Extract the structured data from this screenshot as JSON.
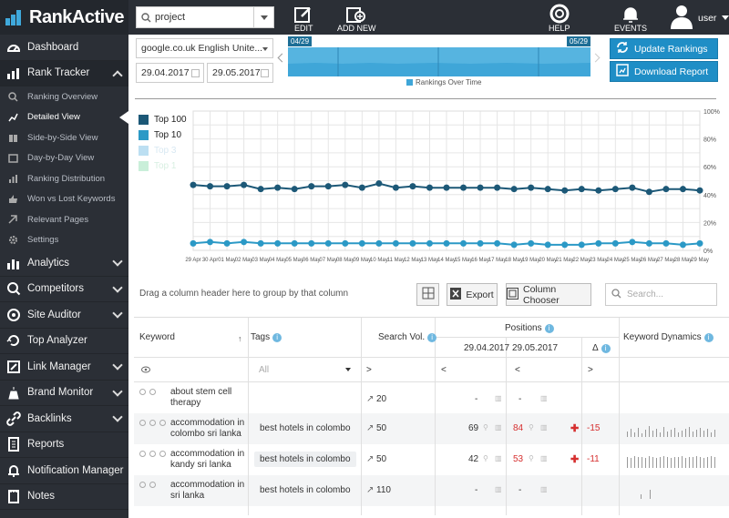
{
  "brand": {
    "name": "RankActive"
  },
  "topbar": {
    "project_value": "project",
    "edit_label": "EDIT",
    "add_new_label": "ADD NEW",
    "help_label": "HELP",
    "events_label": "EVENTS",
    "user_label": "user"
  },
  "sidebar": {
    "items": [
      {
        "label": "Dashboard",
        "icon": "dashboard-icon"
      },
      {
        "label": "Rank Tracker",
        "icon": "rank-tracker-icon"
      },
      {
        "label": "Analytics",
        "icon": "analytics-icon"
      },
      {
        "label": "Competitors",
        "icon": "competitors-icon"
      },
      {
        "label": "Site Auditor",
        "icon": "site-auditor-icon"
      },
      {
        "label": "Top Analyzer",
        "icon": "top-analyzer-icon"
      },
      {
        "label": "Link Manager",
        "icon": "link-manager-icon"
      },
      {
        "label": "Brand Monitor",
        "icon": "brand-monitor-icon"
      },
      {
        "label": "Backlinks",
        "icon": "backlinks-icon"
      },
      {
        "label": "Reports",
        "icon": "reports-icon"
      },
      {
        "label": "Notification Manager",
        "icon": "notification-icon"
      },
      {
        "label": "Notes",
        "icon": "notes-icon"
      }
    ],
    "subitems": [
      {
        "label": "Ranking Overview"
      },
      {
        "label": "Detailed View"
      },
      {
        "label": "Side-by-Side View"
      },
      {
        "label": "Day-by-Day View"
      },
      {
        "label": "Ranking Distribution"
      },
      {
        "label": "Won vs Lost Keywords"
      },
      {
        "label": "Relevant Pages"
      },
      {
        "label": "Settings"
      }
    ]
  },
  "filters": {
    "engine": "google.co.uk English Unite...",
    "date_from": "29.04.2017",
    "date_to": "29.05.2017"
  },
  "timeline": {
    "start_tag": "04/29",
    "end_tag": "05/29",
    "legend": "Rankings Over Time"
  },
  "actions": {
    "update": "Update Rankings",
    "download": "Download Report"
  },
  "chart_data": {
    "type": "line",
    "legend": [
      "Top 100",
      "Top 10",
      "Top 3",
      "Top 1"
    ],
    "colors": [
      "#1c5877",
      "#2b99c6",
      "#bcdff2",
      "#c9efd9"
    ],
    "x": [
      "29 Apr",
      "30 Apr",
      "01 May",
      "02 May",
      "03 May",
      "04 May",
      "05 May",
      "06 May",
      "07 May",
      "08 May",
      "09 May",
      "10 May",
      "11 May",
      "12 May",
      "13 May",
      "14 May",
      "15 May",
      "16 May",
      "17 May",
      "18 May",
      "19 May",
      "20 May",
      "21 May",
      "22 May",
      "23 May",
      "24 May",
      "25 May",
      "26 May",
      "27 May",
      "28 May",
      "29 May"
    ],
    "x_ticks": [
      "29 Apr",
      "30 Apr",
      "01 May",
      "02 May",
      "03 May",
      "04 May",
      "05 May",
      "06 May",
      "07 May",
      "08 May",
      "09 May",
      "10 May",
      "11 May",
      "12 May",
      "13 May",
      "14 May",
      "15 May",
      "16 May",
      "17 May",
      "18 May",
      "19 May",
      "20 May",
      "21 May",
      "22 May",
      "23 May",
      "24 May",
      "25 May",
      "26 May",
      "27 May",
      "28 May",
      "29 May"
    ],
    "y_ticks": [
      "0%",
      "20%",
      "40%",
      "60%",
      "80%",
      "100%"
    ],
    "ylim": [
      0,
      100
    ],
    "series": [
      {
        "name": "Top 100",
        "values": [
          47,
          46,
          46,
          47,
          44,
          45,
          44,
          46,
          46,
          47,
          45,
          48,
          45,
          46,
          45,
          45,
          45,
          45,
          45,
          44,
          45,
          44,
          43,
          44,
          43,
          44,
          45,
          42,
          44,
          44,
          43
        ]
      },
      {
        "name": "Top 10",
        "values": [
          5,
          6,
          5,
          6,
          5,
          5,
          5,
          5,
          5,
          5,
          5,
          5,
          5,
          5,
          5,
          5,
          5,
          5,
          5,
          4,
          5,
          4,
          4,
          4,
          5,
          5,
          6,
          5,
          5,
          4,
          5
        ]
      }
    ]
  },
  "toolbar": {
    "drag_hint": "Drag a column header here to group by that column",
    "export": "Export",
    "column_chooser": "Column Chooser",
    "search_placeholder": "Search..."
  },
  "table": {
    "headers": {
      "keyword": "Keyword",
      "tags": "Tags",
      "search_vol": "Search Vol.",
      "positions": "Positions",
      "date1": "29.04.2017",
      "date2": "29.05.2017",
      "delta": "Δ",
      "dynamics": "Keyword Dynamics"
    },
    "filters": {
      "tags": "All",
      "vol": ">",
      "p1": "<",
      "p2": "<",
      "delta": ">"
    },
    "rows": [
      {
        "keyword": "about stem cell therapy",
        "tag": "",
        "vol": "20",
        "p1": "-",
        "p2": "-",
        "delta": ""
      },
      {
        "keyword": "accommodation in colombo sri lanka",
        "tag": "best hotels in colombo",
        "vol": "50",
        "p1": "69",
        "p2": "84",
        "delta": "-15"
      },
      {
        "keyword": "accommodation in kandy sri lanka",
        "tag": "best hotels in colombo",
        "vol": "50",
        "p1": "42",
        "p2": "53",
        "delta": "-11"
      },
      {
        "keyword": "accommodation in sri lanka",
        "tag": "best hotels in colombo",
        "vol": "110",
        "p1": "-",
        "p2": "-",
        "delta": ""
      }
    ]
  }
}
